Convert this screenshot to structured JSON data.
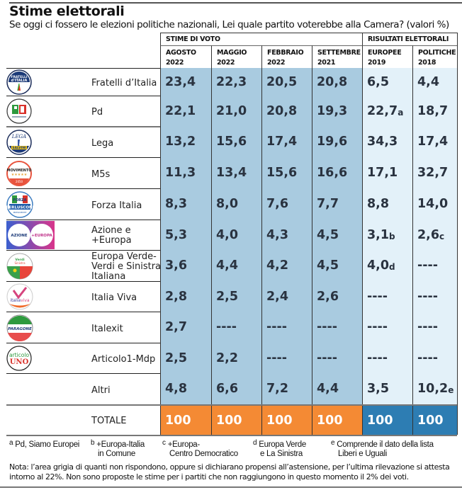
{
  "header": {
    "title": "Stime elettorali",
    "subtitle": "Se oggi ci fossero le elezioni politiche nazionali, Lei quale partito voterebbe alla Camera? (valori %)"
  },
  "colors": {
    "estimate_bg": "#a9cbe0",
    "result_bg": "#e3f1f9",
    "total_estimate_bg": "#f48a34",
    "total_result_bg": "#2d7db3"
  },
  "chart_data": {
    "type": "table",
    "title": "Stime elettorali",
    "groups": [
      {
        "label": "STIME DI VOTO",
        "columns": [
          0,
          1,
          2,
          3
        ]
      },
      {
        "label": "RISULTATI ELETTORALI",
        "columns": [
          4,
          5
        ]
      }
    ],
    "columns": [
      {
        "line1": "AGOSTO",
        "line2": "2022"
      },
      {
        "line1": "MAGGIO",
        "line2": "2022"
      },
      {
        "line1": "FEBBRAIO",
        "line2": "2022"
      },
      {
        "line1": "SETTEMBRE",
        "line2": "2021"
      },
      {
        "line1": "EUROPEE",
        "line2": "2019"
      },
      {
        "line1": "POLITICHE",
        "line2": "2018"
      }
    ],
    "rows": [
      {
        "party": "Fratelli d’Italia",
        "logo": "fratelli-ditalia-logo",
        "values": [
          "23,4",
          "22,3",
          "20,5",
          "20,8",
          "6,5",
          "4,4"
        ],
        "notes": [
          "",
          "",
          "",
          "",
          "",
          ""
        ]
      },
      {
        "party": "Pd",
        "logo": "pd-logo",
        "values": [
          "22,1",
          "21,0",
          "20,8",
          "19,3",
          "22,7",
          "18,7"
        ],
        "notes": [
          "",
          "",
          "",
          "",
          "a",
          ""
        ]
      },
      {
        "party": "Lega",
        "logo": "lega-logo",
        "values": [
          "13,2",
          "15,6",
          "17,4",
          "19,6",
          "34,3",
          "17,4"
        ],
        "notes": [
          "",
          "",
          "",
          "",
          "",
          ""
        ]
      },
      {
        "party": "M5s",
        "logo": "m5s-logo",
        "values": [
          "11,3",
          "13,4",
          "15,6",
          "16,6",
          "17,1",
          "32,7"
        ],
        "notes": [
          "",
          "",
          "",
          "",
          "",
          ""
        ]
      },
      {
        "party": "Forza Italia",
        "logo": "forza-italia-logo",
        "values": [
          "8,3",
          "8,0",
          "7,6",
          "7,7",
          "8,8",
          "14,0"
        ],
        "notes": [
          "",
          "",
          "",
          "",
          "",
          ""
        ]
      },
      {
        "party": "Azione e +Europa",
        "party_lines": [
          "Azione e",
          "+Europa"
        ],
        "logo": "azione-europa-logo",
        "values": [
          "5,3",
          "4,0",
          "4,3",
          "4,5",
          "3,1",
          "2,6"
        ],
        "notes": [
          "",
          "",
          "",
          "",
          "b",
          "c"
        ]
      },
      {
        "party": "Europa Verde-Verdi e Sinistra Italiana",
        "party_lines": [
          "Europa Verde-",
          "Verdi e Sinistra",
          "Italiana"
        ],
        "logo": "verdi-sinistra-logo",
        "values": [
          "3,6",
          "4,4",
          "4,2",
          "4,5",
          "4,0",
          "----"
        ],
        "notes": [
          "",
          "",
          "",
          "",
          "d",
          ""
        ]
      },
      {
        "party": "Italia Viva",
        "logo": "italia-viva-logo",
        "values": [
          "2,8",
          "2,5",
          "2,4",
          "2,6",
          "----",
          "----"
        ],
        "notes": [
          "",
          "",
          "",
          "",
          "",
          ""
        ]
      },
      {
        "party": "Italexit",
        "logo": "italexit-logo",
        "values": [
          "2,7",
          "----",
          "----",
          "----",
          "----",
          "----"
        ],
        "notes": [
          "",
          "",
          "",
          "",
          "",
          ""
        ]
      },
      {
        "party": "Articolo1-Mdp",
        "logo": "articolo-uno-logo",
        "values": [
          "2,5",
          "2,2",
          "----",
          "----",
          "----",
          "----"
        ],
        "notes": [
          "",
          "",
          "",
          "",
          "",
          ""
        ]
      },
      {
        "party": "Altri",
        "logo": "",
        "values": [
          "4,8",
          "6,6",
          "7,2",
          "4,4",
          "3,5",
          "10,2"
        ],
        "notes": [
          "",
          "",
          "",
          "",
          "",
          "e"
        ]
      }
    ],
    "total": {
      "label": "TOTALE",
      "values": [
        "100",
        "100",
        "100",
        "100",
        "100",
        "100"
      ]
    },
    "unit": "%"
  },
  "logo_text": {
    "fdi": "FRATELLI d'ITALIA",
    "m5s": "MOVIMENTO 2050",
    "lega": "LEGA SALVINI",
    "azione": "AZIONE +EUROPA",
    "italiaviva": "italiaviva",
    "articolo": "articolo UNO"
  },
  "footnotes": [
    {
      "key": "a",
      "text": "Pd, Siamo Europei"
    },
    {
      "key": "b",
      "text": "+Europa-Italia in Comune",
      "lines": [
        "+Europa-Italia",
        "in Comune"
      ]
    },
    {
      "key": "c",
      "text": "+Europa-Centro Democratico",
      "lines": [
        "+Europa-",
        "Centro Democratico"
      ]
    },
    {
      "key": "d",
      "text": "Europa Verde e La Sinistra",
      "lines": [
        "Europa Verde",
        "e La Sinistra"
      ]
    },
    {
      "key": "e",
      "text": "Comprende il dato della lista Liberi e Uguali",
      "lines": [
        "Comprende il dato della lista",
        "Liberi e Uguali"
      ]
    }
  ],
  "nota": "Nota: l’area grigia di quanti non rispondono, oppure si dichiarano propensi all’astensione, per l’ultima rilevazione si attesta intorno al 22%. Non sono proposte le stime per i partiti che non raggiungono in questo momento il 2% dei voti."
}
